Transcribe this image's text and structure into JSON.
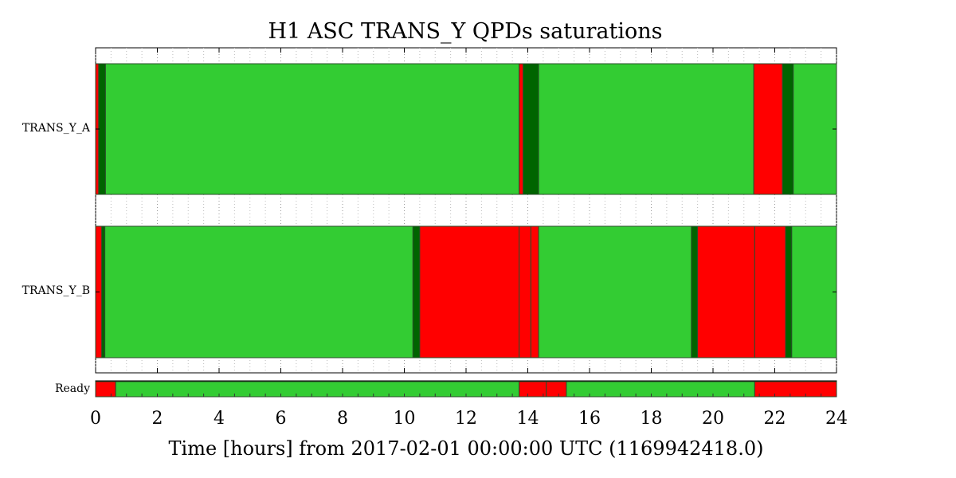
{
  "chart_data": {
    "type": "timeline",
    "title": "H1 ASC TRANS_Y QPDs saturations",
    "xlabel": "Time [hours] from 2017-02-01 00:00:00 UTC (1169942418.0)",
    "xlim": [
      0,
      24
    ],
    "xticks": [
      "0",
      "2",
      "4",
      "6",
      "8",
      "10",
      "12",
      "14",
      "16",
      "18",
      "20",
      "22",
      "24"
    ],
    "grid": true,
    "colors": {
      "green": "#33cc33",
      "dark_green": "#006400",
      "red": "#ff0000",
      "edge": "#2b4d2b"
    },
    "rows": [
      {
        "label": "TRANS_Y_A",
        "segments": [
          {
            "start": 0.0,
            "end": 0.1,
            "state": "red"
          },
          {
            "start": 0.1,
            "end": 0.32,
            "state": "dark_green"
          },
          {
            "start": 0.32,
            "end": 13.72,
            "state": "green"
          },
          {
            "start": 13.72,
            "end": 13.85,
            "state": "red"
          },
          {
            "start": 13.85,
            "end": 14.35,
            "state": "dark_green"
          },
          {
            "start": 14.35,
            "end": 21.32,
            "state": "green"
          },
          {
            "start": 21.32,
            "end": 22.25,
            "state": "red"
          },
          {
            "start": 22.25,
            "end": 22.6,
            "state": "dark_green"
          },
          {
            "start": 22.6,
            "end": 24.0,
            "state": "green"
          }
        ]
      },
      {
        "label": "TRANS_Y_B",
        "segments": [
          {
            "start": 0.0,
            "end": 0.2,
            "state": "red"
          },
          {
            "start": 0.2,
            "end": 0.3,
            "state": "dark_green"
          },
          {
            "start": 0.3,
            "end": 10.28,
            "state": "green"
          },
          {
            "start": 10.28,
            "end": 10.5,
            "state": "dark_green"
          },
          {
            "start": 10.5,
            "end": 13.72,
            "state": "red"
          },
          {
            "start": 13.72,
            "end": 14.1,
            "state": "red"
          },
          {
            "start": 14.1,
            "end": 14.35,
            "state": "red"
          },
          {
            "start": 14.35,
            "end": 19.3,
            "state": "green"
          },
          {
            "start": 19.3,
            "end": 19.5,
            "state": "dark_green"
          },
          {
            "start": 19.5,
            "end": 21.35,
            "state": "red"
          },
          {
            "start": 21.35,
            "end": 22.35,
            "state": "red"
          },
          {
            "start": 22.35,
            "end": 22.55,
            "state": "dark_green"
          },
          {
            "start": 22.55,
            "end": 24.0,
            "state": "green"
          }
        ]
      }
    ],
    "ready": {
      "label": "Ready",
      "segments": [
        {
          "start": 0.0,
          "end": 0.65,
          "state": "red"
        },
        {
          "start": 0.65,
          "end": 13.72,
          "state": "green"
        },
        {
          "start": 13.72,
          "end": 14.6,
          "state": "red"
        },
        {
          "start": 14.6,
          "end": 15.25,
          "state": "red"
        },
        {
          "start": 15.25,
          "end": 21.35,
          "state": "green"
        },
        {
          "start": 21.35,
          "end": 24.0,
          "state": "red"
        }
      ]
    }
  }
}
